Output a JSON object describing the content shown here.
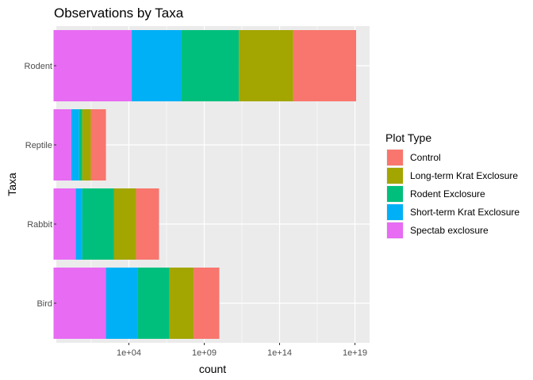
{
  "chart_data": {
    "type": "bar",
    "orientation": "horizontal",
    "stacked": true,
    "title": "Observations by Taxa",
    "xlabel": "count",
    "ylabel": "Taxa",
    "x_scale": "log10",
    "xlim": [
      0.1,
      1e+20
    ],
    "x_ticks": [
      10000.0,
      1000000000.0,
      100000000000000.0,
      1e+19
    ],
    "x_tick_labels": [
      "1e+04",
      "1e+09",
      "1e+14",
      "1e+19"
    ],
    "categories": [
      "Bird",
      "Rabbit",
      "Reptile",
      "Rodent"
    ],
    "stack_order": [
      "Spectab exclosure",
      "Short-term Krat Exclosure",
      "Rodent Exclosure",
      "Long-term Krat Exclosure",
      "Control"
    ],
    "cumulative_extents": [
      {
        "category": "Bird",
        "ends": [
          300.0,
          40000.0,
          5000000.0,
          200000000.0,
          10000000000.0
        ]
      },
      {
        "category": "Rabbit",
        "ends": [
          3,
          8,
          1000.0,
          30000.0,
          1000000.0
        ]
      },
      {
        "category": "Reptile",
        "ends": [
          1.5,
          5,
          8,
          30,
          300
        ]
      },
      {
        "category": "Rodent",
        "ends": [
          15000.0,
          30000000.0,
          200000000000.0,
          800000000000000.0,
          1.2e+19
        ]
      }
    ],
    "series": [
      {
        "name": "Control",
        "color": "#F8766D"
      },
      {
        "name": "Long-term Krat Exclosure",
        "color": "#A3A500"
      },
      {
        "name": "Rodent Exclosure",
        "color": "#00BF7D"
      },
      {
        "name": "Short-term Krat Exclosure",
        "color": "#00B0F6"
      },
      {
        "name": "Spectab exclosure",
        "color": "#E76BF3"
      }
    ],
    "legend": {
      "title": "Plot Type",
      "position": "right"
    },
    "grid": true,
    "panel_background": "#EBEBEB",
    "grid_color": "#FFFFFF"
  }
}
